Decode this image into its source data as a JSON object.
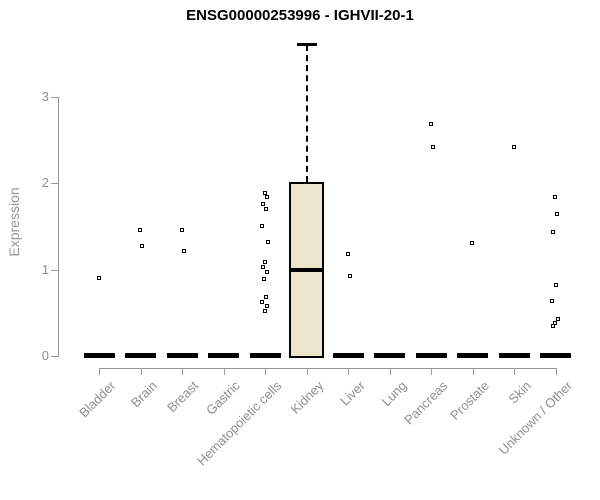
{
  "chart_data": {
    "type": "boxplot",
    "title": "ENSG00000253996 - IGHVII-20-1",
    "ylabel": "Expression",
    "xlabel": "",
    "ylim": [
      0,
      3.7
    ],
    "yticks": [
      0,
      1,
      2,
      3
    ],
    "grid": false,
    "legend": "none",
    "colors": {
      "box_fill": "#ece5cb",
      "box_border": "#000000",
      "median": "#000000",
      "point": "#000000",
      "axis": "#9a9a9a",
      "text_gray": "#8f8f8f",
      "title": "#000000"
    },
    "categories": [
      "Bladder",
      "Brain",
      "Breast",
      "Gastric",
      "Hematopoietic cells",
      "Kidney",
      "Liver",
      "Lung",
      "Pancreas",
      "Prostate",
      "Skin",
      "Unknown / Other"
    ],
    "boxes": [
      {
        "category": "Bladder",
        "collapsed": true,
        "median": 0,
        "q1": 0,
        "q3": 0,
        "whisker_low": 0,
        "whisker_high": 0,
        "points": [
          0.9
        ]
      },
      {
        "category": "Brain",
        "collapsed": true,
        "median": 0,
        "q1": 0,
        "q3": 0,
        "whisker_low": 0,
        "whisker_high": 0,
        "points": [
          1.45,
          1.27
        ]
      },
      {
        "category": "Breast",
        "collapsed": true,
        "median": 0,
        "q1": 0,
        "q3": 0,
        "whisker_low": 0,
        "whisker_high": 0,
        "points": [
          1.45,
          1.21
        ]
      },
      {
        "category": "Gastric",
        "collapsed": true,
        "median": 0,
        "q1": 0,
        "q3": 0,
        "whisker_low": 0,
        "whisker_high": 0,
        "points": []
      },
      {
        "category": "Hematopoietic cells",
        "collapsed": true,
        "median": 0,
        "q1": 0,
        "q3": 0,
        "whisker_low": 0,
        "whisker_high": 0,
        "points": [
          1.88,
          1.84,
          1.76,
          1.7,
          1.5,
          1.32,
          1.08,
          1.03,
          0.97,
          0.89,
          0.68,
          0.62,
          0.57,
          0.51
        ]
      },
      {
        "category": "Kidney",
        "collapsed": false,
        "median": 1.0,
        "q1": 0,
        "q3": 2.02,
        "whisker_low": 0,
        "whisker_high": 3.63,
        "points": []
      },
      {
        "category": "Liver",
        "collapsed": true,
        "median": 0,
        "q1": 0,
        "q3": 0,
        "whisker_low": 0,
        "whisker_high": 0,
        "points": [
          1.18,
          0.92
        ]
      },
      {
        "category": "Lung",
        "collapsed": true,
        "median": 0,
        "q1": 0,
        "q3": 0,
        "whisker_low": 0,
        "whisker_high": 0,
        "points": []
      },
      {
        "category": "Pancreas",
        "collapsed": true,
        "median": 0,
        "q1": 0,
        "q3": 0,
        "whisker_low": 0,
        "whisker_high": 0,
        "points": [
          2.68,
          2.42
        ]
      },
      {
        "category": "Prostate",
        "collapsed": true,
        "median": 0,
        "q1": 0,
        "q3": 0,
        "whisker_low": 0,
        "whisker_high": 0,
        "points": [
          1.3
        ]
      },
      {
        "category": "Skin",
        "collapsed": true,
        "median": 0,
        "q1": 0,
        "q3": 0,
        "whisker_low": 0,
        "whisker_high": 0,
        "points": [
          2.41
        ]
      },
      {
        "category": "Unknown / Other",
        "collapsed": true,
        "median": 0,
        "q1": 0,
        "q3": 0,
        "whisker_low": 0,
        "whisker_high": 0,
        "points": [
          1.84,
          1.64,
          1.43,
          0.82,
          0.63,
          0.42,
          0.38,
          0.34
        ]
      }
    ]
  }
}
